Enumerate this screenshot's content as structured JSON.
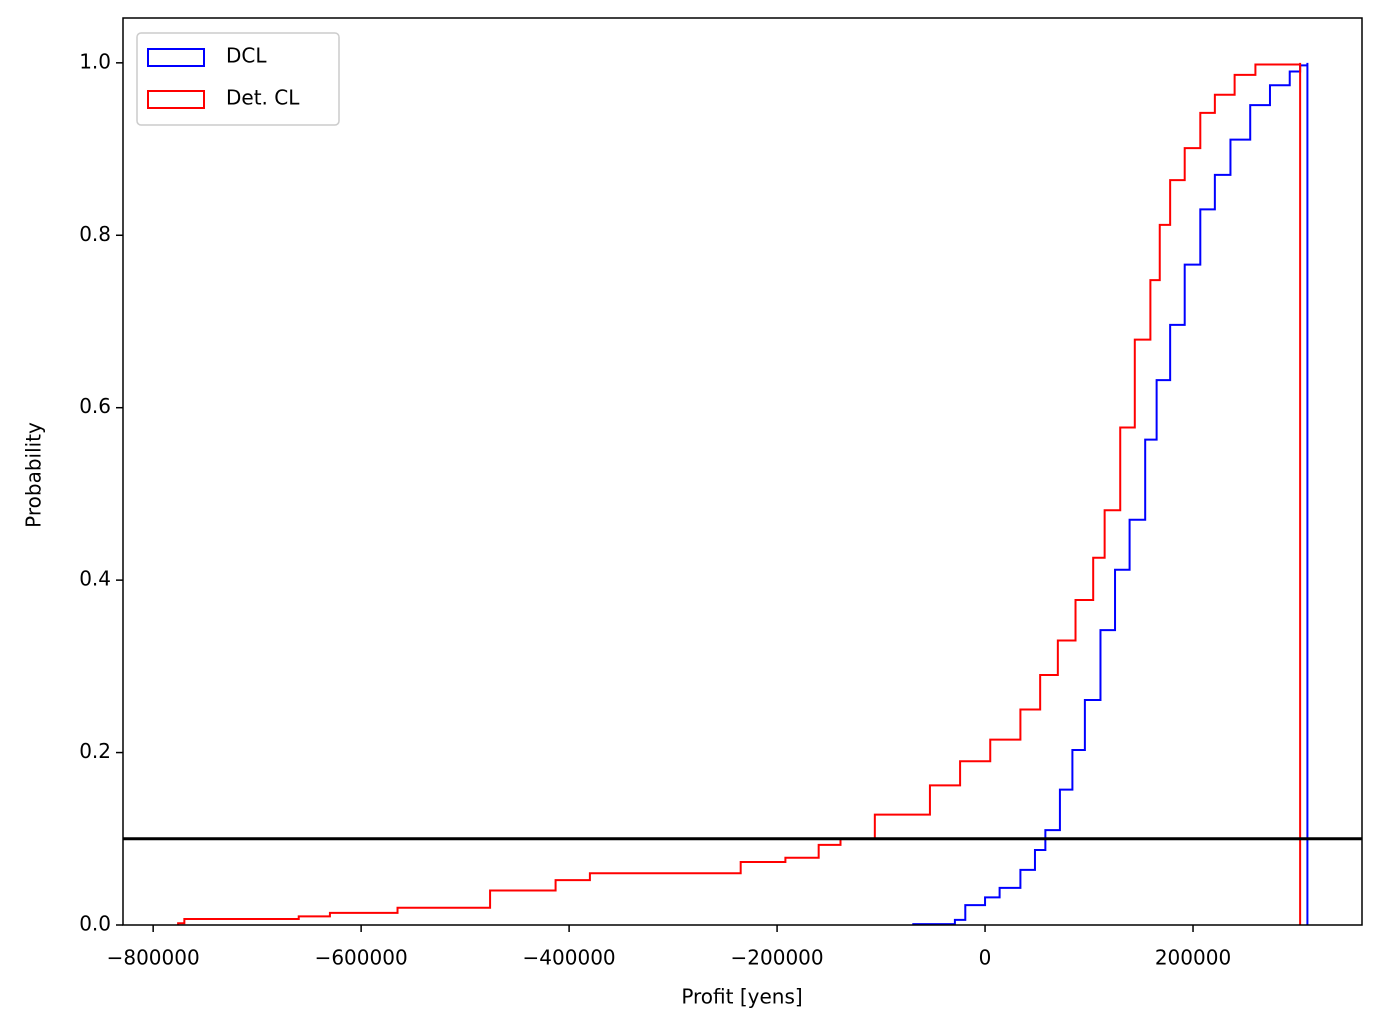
{
  "chart_data": {
    "type": "step",
    "x_label": "Profit [yens]",
    "y_label": "Probability",
    "xlim": [
      -829000,
      362500
    ],
    "ylim": [
      0,
      1.052
    ],
    "xticks": [
      {
        "value": -800000,
        "label": "−800000"
      },
      {
        "value": -600000,
        "label": "−600000"
      },
      {
        "value": -400000,
        "label": "−400000"
      },
      {
        "value": -200000,
        "label": "−200000"
      },
      0,
      200000
    ],
    "yticks": [
      {
        "value": 0,
        "label": "0.0"
      },
      {
        "value": 0.2,
        "label": "0.2"
      },
      {
        "value": 0.4,
        "label": "0.4"
      },
      {
        "value": 0.6,
        "label": "0.6"
      },
      {
        "value": 0.8,
        "label": "0.8"
      },
      {
        "value": 1,
        "label": "1.0"
      }
    ],
    "hline": 0.1,
    "hline_color": "#000000",
    "legend": "upper left",
    "series": [
      {
        "name": "DCL",
        "color": "#0000ff",
        "x": [
          -69000,
          -29000,
          -19000,
          0,
          14000,
          34000,
          48000,
          58000,
          72000,
          84000,
          96000,
          111000,
          125000,
          139000,
          154000,
          165000,
          178000,
          192000,
          207000,
          221000,
          236000,
          255000,
          274000,
          293000,
          303000,
          310000
        ],
        "values": [
          0.001,
          0.006,
          0.023,
          0.032,
          0.043,
          0.064,
          0.087,
          0.11,
          0.157,
          0.203,
          0.261,
          0.342,
          0.412,
          0.47,
          0.563,
          0.632,
          0.696,
          0.766,
          0.83,
          0.87,
          0.911,
          0.951,
          0.974,
          0.99,
          0.997,
          1.0
        ]
      },
      {
        "name": "Det. CL",
        "color": "#ff0000",
        "x": [
          -776000,
          -770000,
          -660000,
          -630000,
          -565000,
          -476000,
          -413000,
          -380000,
          -235000,
          -192000,
          -160000,
          -139000,
          -106000,
          -53000,
          -24000,
          5000,
          34000,
          53000,
          70000,
          87000,
          104000,
          115000,
          130000,
          144000,
          159000,
          168000,
          178000,
          192000,
          207000,
          221000,
          240000,
          260000,
          303000
        ],
        "values": [
          0.002,
          0.007,
          0.01,
          0.014,
          0.02,
          0.04,
          0.052,
          0.06,
          0.073,
          0.078,
          0.093,
          0.1,
          0.128,
          0.162,
          0.19,
          0.215,
          0.25,
          0.29,
          0.33,
          0.377,
          0.426,
          0.481,
          0.577,
          0.679,
          0.748,
          0.812,
          0.864,
          0.901,
          0.942,
          0.963,
          0.986,
          0.998,
          1.0
        ]
      }
    ]
  }
}
